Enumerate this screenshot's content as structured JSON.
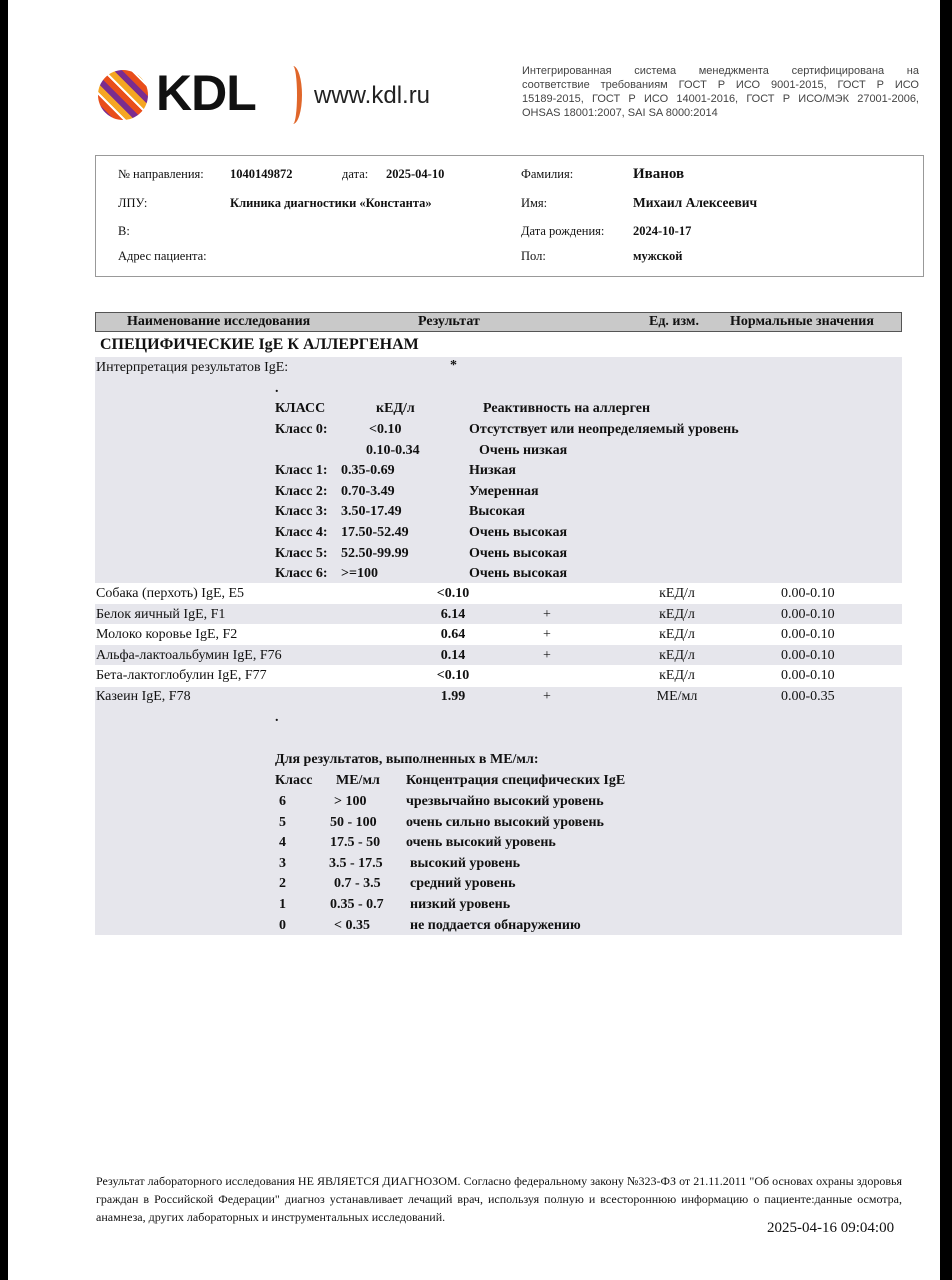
{
  "header": {
    "logo_text": "KDL",
    "website": "www.kdl.ru",
    "cert_lines": [
      "Интегрированная система менеджмента сертифицирована на",
      "соответствие требованиям ГОСТ Р ИСО 9001-2015, ГОСТ Р ИСО",
      "15189-2015, ГОСТ Р ИСО 14001-2016, ГОСТ Р ИСО/МЭК 27001-2006,",
      "OHSAS 18001:2007, SAI SA 8000:2014"
    ]
  },
  "patient": {
    "referral_label": "№ направления:",
    "referral": "1040149872",
    "date_label": "дата:",
    "date": "2025-04-10",
    "lpu_label": "ЛПУ:",
    "lpu": "Клиника диагностики «Константа»",
    "v_label": "В:",
    "address_label": "Адрес пациента:",
    "surname_label": "Фамилия:",
    "surname": "Иванов",
    "name_label": "Имя:",
    "name": "Михаил Алексеевич",
    "dob_label": "Дата рождения:",
    "dob": "2024-10-17",
    "sex_label": "Пол:",
    "sex": "мужской"
  },
  "table": {
    "headers": [
      "Наименование исследования",
      "Результат",
      "Ед. изм.",
      "Нормальные значения"
    ],
    "section": "СПЕЦИФИЧЕСКИЕ IgE К АЛЛЕРГЕНАМ",
    "interp_label": "Интерпретация результатов IgE:",
    "interp_mark": "*",
    "dot": ".",
    "interp_header": [
      "КЛАСС",
      "кЕД/л",
      "Реактивность на аллерген"
    ],
    "interp_rows": [
      [
        "Класс 0:",
        "<0.10",
        "Отсутствует или неопределяемый уровень"
      ],
      [
        "",
        "0.10-0.34",
        "Очень низкая"
      ],
      [
        "Класс 1:",
        "0.35-0.69",
        "Низкая"
      ],
      [
        "Класс 2:",
        "0.70-3.49",
        "Умеренная"
      ],
      [
        "Класс 3:",
        "3.50-17.49",
        "Высокая"
      ],
      [
        "Класс 4:",
        "17.50-52.49",
        "Очень высокая"
      ],
      [
        "Класс 5:",
        "52.50-99.99",
        "Очень высокая"
      ],
      [
        "Класс 6:",
        ">=100",
        "Очень высокая"
      ]
    ],
    "results": [
      {
        "name": "Собака (перхоть) IgE, E5",
        "value": "<0.10",
        "flag": "",
        "unit": "кЕД/л",
        "ref": "0.00-0.10"
      },
      {
        "name": "Белок яичный IgE, F1",
        "value": "6.14",
        "flag": "+",
        "unit": "кЕД/л",
        "ref": "0.00-0.10"
      },
      {
        "name": "Молоко коровье IgE, F2",
        "value": "0.64",
        "flag": "+",
        "unit": "кЕД/л",
        "ref": "0.00-0.10"
      },
      {
        "name": "Альфа-лактоальбумин IgE, F76",
        "value": "0.14",
        "flag": "+",
        "unit": "кЕД/л",
        "ref": "0.00-0.10"
      },
      {
        "name": "Бета-лактоглобулин IgE, F77",
        "value": "<0.10",
        "flag": "",
        "unit": "кЕД/л",
        "ref": "0.00-0.10"
      },
      {
        "name": "Казеин IgE, F78",
        "value": "1.99",
        "flag": "+",
        "unit": "МЕ/мл",
        "ref": "0.00-0.35"
      }
    ],
    "me_title": "Для результатов, выполненных в МЕ/мл:",
    "me_header": [
      "Класс",
      "МЕ/мл",
      "Концентрация специфических IgE"
    ],
    "me_rows": [
      [
        "6",
        "> 100",
        "чрезвычайно высокий уровень"
      ],
      [
        "5",
        "50 - 100",
        "очень сильно высокий уровень"
      ],
      [
        "4",
        "17.5 - 50",
        "очень высокий уровень"
      ],
      [
        "3",
        "3.5 - 17.5",
        "высокий уровень"
      ],
      [
        "2",
        "0.7 - 3.5",
        "средний уровень"
      ],
      [
        "1",
        "0.35 - 0.7",
        "низкий уровень"
      ],
      [
        "0",
        "< 0.35",
        "не поддается обнаружению"
      ]
    ]
  },
  "footer": {
    "disclaimer": "Результат лабораторного исследования НЕ ЯВЛЯЕТСЯ ДИАГНОЗОМ. Согласно федеральному закону №323-ФЗ от 21.11.2011 \"Об основах охраны здоровья граждан в Российской Федерации\" диагноз устанавливает лечащий врач, используя полную и всестороннюю информацию о пациенте:данные осмотра, анамнеза, других лабораторных и инструментальных исследований.",
    "timestamp": "2025-04-16 09:04:00"
  }
}
